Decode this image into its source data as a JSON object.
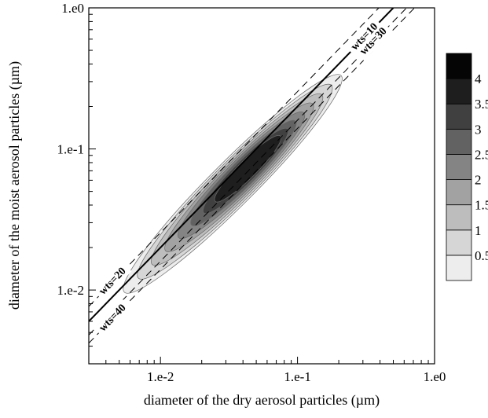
{
  "chart_data": {
    "type": "heatmap",
    "subtype": "filled-contour",
    "title": "",
    "xlabel": "diameter of the dry aerosol particles (µm)",
    "ylabel": "diameter of the moist aerosol particles (µm)",
    "xscale": "log",
    "yscale": "log",
    "xlim": [
      0.003,
      1.0
    ],
    "ylim": [
      0.003,
      1.0
    ],
    "grid": false,
    "x_ticks": [
      {
        "value": 0.01,
        "label": "1.e-2"
      },
      {
        "value": 0.1,
        "label": "1.e-1"
      },
      {
        "value": 1.0,
        "label": "1.e0"
      }
    ],
    "y_ticks": [
      {
        "value": 0.01,
        "label": "1.e-2"
      },
      {
        "value": 0.1,
        "label": "1.e-1"
      },
      {
        "value": 1.0,
        "label": "1.e0"
      }
    ],
    "colorbar": {
      "levels": [
        0.5,
        1,
        1.5,
        2,
        2.5,
        3,
        3.5,
        4
      ],
      "labels": [
        "0.5",
        "1",
        "1.5",
        "2",
        "2.5",
        "3",
        "3.5",
        "4"
      ],
      "colors": [
        "#ededed",
        "#d6d6d6",
        "#bdbdbd",
        "#a2a2a2",
        "#848484",
        "#626262",
        "#404040",
        "#1e1e1e",
        "#050505"
      ]
    },
    "density_peak": {
      "x": 0.045,
      "y": 0.075,
      "max_level": 4
    },
    "reference_lines": [
      {
        "label": "wts=10",
        "style": "solid",
        "ratio": 2.0
      },
      {
        "label": "wts=20",
        "style": "dashed",
        "ratio": 2.55
      },
      {
        "label": "wts=30",
        "style": "dashed",
        "ratio": 1.6
      },
      {
        "label": "wts=40",
        "style": "dashed",
        "ratio": 1.4
      }
    ]
  }
}
